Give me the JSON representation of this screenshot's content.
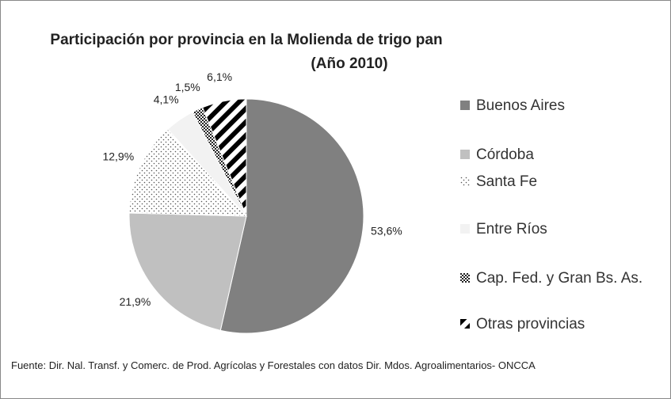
{
  "chart_data": {
    "type": "pie",
    "title": "Participación por provincia en la Molienda de trigo pan",
    "subtitle": "(Año 2010)",
    "categories": [
      "Buenos Aires",
      "Córdoba",
      "Santa Fe",
      "Entre Ríos",
      "Cap. Fed. y Gran Bs. As.",
      "Otras provincias"
    ],
    "values": [
      53.6,
      21.9,
      12.9,
      4.1,
      1.5,
      6.1
    ],
    "value_labels": [
      "53,6%",
      "21,9%",
      "12,9%",
      "4,1%",
      "1,5%",
      "6,1%"
    ],
    "colors": [
      "#808080",
      "#c0c0c0",
      "#ffffff",
      "#f2f2f2",
      "#404040",
      "#000000"
    ],
    "patterns": [
      "solid",
      "solid",
      "dots",
      "solid",
      "checker",
      "stripes"
    ],
    "legend": "right",
    "source": "Fuente: Dir. Nal. Transf. y Comerc. de Prod. Agrícolas y Forestales con datos Dir. Mdos. Agroalimentarios- ONCCA"
  }
}
